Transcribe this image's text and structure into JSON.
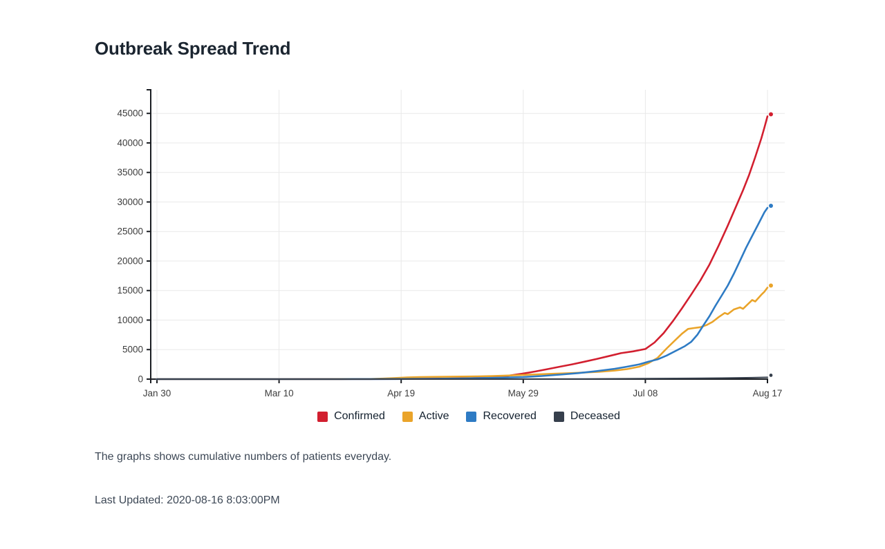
{
  "page": {
    "title": "Outbreak Spread Trend",
    "caption": "The graphs shows cumulative numbers of patients everyday.",
    "last_updated": "Last Updated: 2020-08-16 8:03:00PM"
  },
  "chart_data": {
    "type": "line",
    "title": "Outbreak Spread Trend",
    "xlabel": "",
    "ylabel": "",
    "x_axis": {
      "unit": "date (day offset from Jan 30)",
      "domain_days": [
        0,
        200
      ],
      "tick_days": [
        0,
        40,
        80,
        120,
        160,
        200
      ],
      "tick_labels": [
        "Jan 30",
        "Mar 10",
        "Apr 19",
        "May 29",
        "Jul 08",
        "Aug 17"
      ]
    },
    "y_axis": {
      "ticks": [
        0,
        5000,
        10000,
        15000,
        20000,
        25000,
        30000,
        35000,
        40000,
        45000
      ],
      "ylim": [
        0,
        49000
      ]
    },
    "grid": true,
    "legend_position": "bottom",
    "colors": {
      "axis": "#1a1d22",
      "gridline": "#e9e9e9",
      "confirmed": "#d21f2f",
      "active": "#eaa42a",
      "recovered": "#2e7bc4",
      "deceased": "#363f4c"
    },
    "series": [
      {
        "name": "Confirmed",
        "color": "#d21f2f",
        "points": [
          [
            0,
            1
          ],
          [
            10,
            1
          ],
          [
            20,
            1
          ],
          [
            30,
            2
          ],
          [
            40,
            4
          ],
          [
            50,
            7
          ],
          [
            60,
            12
          ],
          [
            70,
            22
          ],
          [
            80,
            40
          ],
          [
            90,
            70
          ],
          [
            95,
            100
          ],
          [
            100,
            140
          ],
          [
            105,
            210
          ],
          [
            110,
            330
          ],
          [
            115,
            560
          ],
          [
            120,
            950
          ],
          [
            124,
            1300
          ],
          [
            128,
            1700
          ],
          [
            132,
            2100
          ],
          [
            136,
            2500
          ],
          [
            140,
            2950
          ],
          [
            144,
            3400
          ],
          [
            148,
            3900
          ],
          [
            152,
            4400
          ],
          [
            156,
            4700
          ],
          [
            160,
            5100
          ],
          [
            163,
            6200
          ],
          [
            166,
            7800
          ],
          [
            169,
            9800
          ],
          [
            172,
            12000
          ],
          [
            175,
            14300
          ],
          [
            178,
            16700
          ],
          [
            181,
            19400
          ],
          [
            184,
            22600
          ],
          [
            187,
            26000
          ],
          [
            190,
            29600
          ],
          [
            192,
            32000
          ],
          [
            194,
            34600
          ],
          [
            196,
            37600
          ],
          [
            198,
            40800
          ],
          [
            199,
            42600
          ],
          [
            200,
            44500
          ]
        ]
      },
      {
        "name": "Active",
        "color": "#eaa42a",
        "points": [
          [
            0,
            0
          ],
          [
            30,
            1
          ],
          [
            50,
            3
          ],
          [
            60,
            6
          ],
          [
            70,
            25
          ],
          [
            74,
            90
          ],
          [
            78,
            190
          ],
          [
            82,
            280
          ],
          [
            86,
            340
          ],
          [
            90,
            370
          ],
          [
            95,
            400
          ],
          [
            100,
            430
          ],
          [
            105,
            470
          ],
          [
            110,
            520
          ],
          [
            115,
            610
          ],
          [
            120,
            710
          ],
          [
            125,
            810
          ],
          [
            130,
            910
          ],
          [
            135,
            1010
          ],
          [
            140,
            1120
          ],
          [
            145,
            1250
          ],
          [
            150,
            1450
          ],
          [
            154,
            1700
          ],
          [
            158,
            2100
          ],
          [
            161,
            2700
          ],
          [
            164,
            3600
          ],
          [
            167,
            5200
          ],
          [
            170,
            6700
          ],
          [
            172,
            7700
          ],
          [
            174,
            8500
          ],
          [
            176,
            8650
          ],
          [
            178,
            8800
          ],
          [
            180,
            9150
          ],
          [
            182,
            9700
          ],
          [
            184,
            10500
          ],
          [
            186,
            11200
          ],
          [
            187,
            11000
          ],
          [
            189,
            11800
          ],
          [
            191,
            12150
          ],
          [
            192,
            11900
          ],
          [
            194,
            12900
          ],
          [
            195,
            13400
          ],
          [
            196,
            13150
          ],
          [
            198,
            14300
          ],
          [
            199,
            14800
          ],
          [
            200,
            15500
          ]
        ]
      },
      {
        "name": "Recovered",
        "color": "#2e7bc4",
        "points": [
          [
            0,
            0
          ],
          [
            40,
            0
          ],
          [
            60,
            2
          ],
          [
            70,
            6
          ],
          [
            80,
            20
          ],
          [
            90,
            55
          ],
          [
            100,
            115
          ],
          [
            110,
            210
          ],
          [
            120,
            350
          ],
          [
            126,
            530
          ],
          [
            132,
            760
          ],
          [
            138,
            1020
          ],
          [
            144,
            1360
          ],
          [
            150,
            1750
          ],
          [
            154,
            2100
          ],
          [
            158,
            2500
          ],
          [
            161,
            2950
          ],
          [
            164,
            3350
          ],
          [
            167,
            4000
          ],
          [
            170,
            4800
          ],
          [
            173,
            5600
          ],
          [
            175,
            6300
          ],
          [
            177,
            7500
          ],
          [
            179,
            9100
          ],
          [
            181,
            10650
          ],
          [
            183,
            12450
          ],
          [
            185,
            14150
          ],
          [
            187,
            15850
          ],
          [
            189,
            17850
          ],
          [
            191,
            20050
          ],
          [
            193,
            22250
          ],
          [
            195,
            24250
          ],
          [
            197,
            26250
          ],
          [
            199,
            28250
          ],
          [
            200,
            29000
          ]
        ]
      },
      {
        "name": "Deceased",
        "color": "#363f4c",
        "points": [
          [
            0,
            0
          ],
          [
            60,
            0
          ],
          [
            90,
            2
          ],
          [
            110,
            6
          ],
          [
            120,
            12
          ],
          [
            140,
            38
          ],
          [
            160,
            85
          ],
          [
            175,
            130
          ],
          [
            185,
            180
          ],
          [
            195,
            240
          ],
          [
            200,
            300
          ]
        ]
      }
    ]
  }
}
